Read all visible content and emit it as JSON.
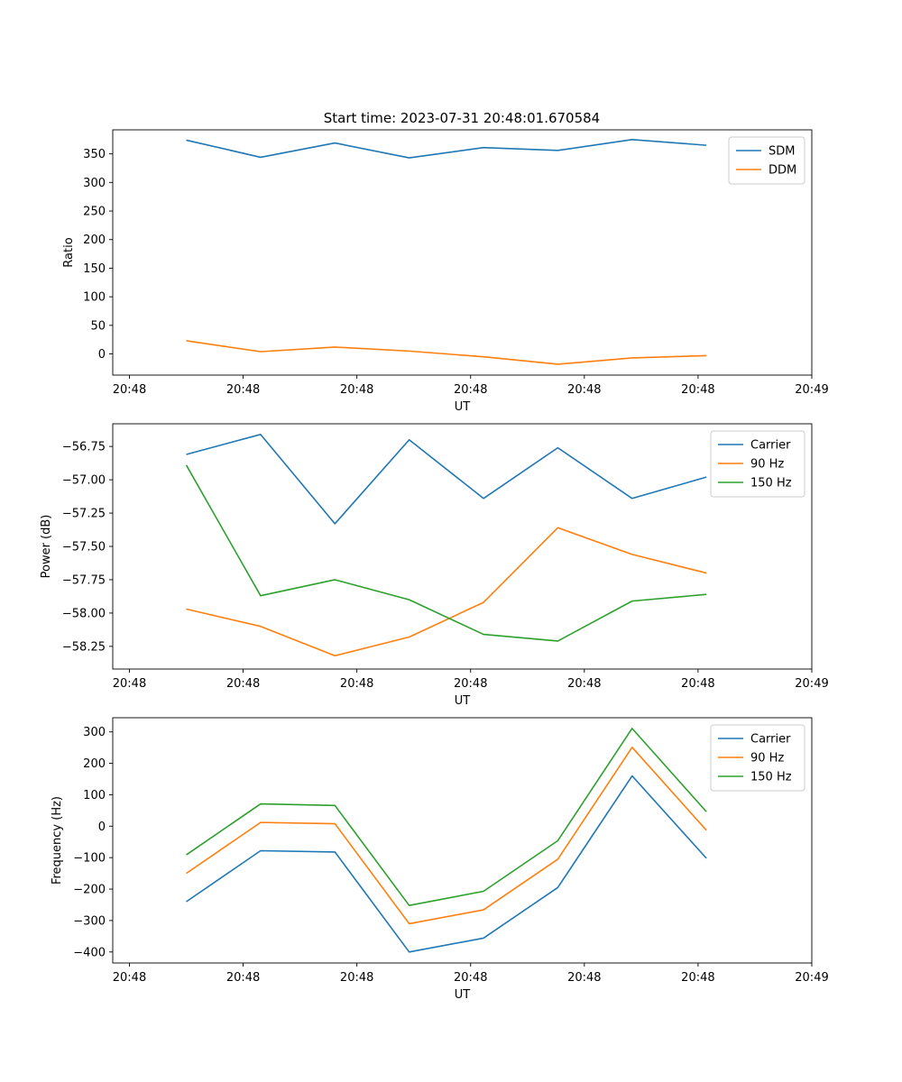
{
  "figure": {
    "title": "Start time: 2023-07-31 20:48:01.670584"
  },
  "chart_data": [
    {
      "type": "line",
      "title": "Start time: 2023-07-31 20:48:01.670584",
      "xlabel": "UT",
      "ylabel": "Ratio",
      "xlim": [
        -0.22,
        9.0
      ],
      "ylim": [
        -37,
        392
      ],
      "xticks": [
        0,
        1.5,
        3,
        4.5,
        6,
        7.5,
        9
      ],
      "xticklabels": [
        "20:48",
        "20:48",
        "20:48",
        "20:48",
        "20:48",
        "20:48",
        "20:49"
      ],
      "yticks": [
        0,
        50,
        100,
        150,
        200,
        250,
        300,
        350
      ],
      "yticklabels": [
        "0",
        "50",
        "100",
        "150",
        "200",
        "250",
        "300",
        "350"
      ],
      "x": [
        0.75,
        1.73,
        2.71,
        3.69,
        4.67,
        5.65,
        6.63,
        7.61
      ],
      "legend_position": "top-right",
      "series": [
        {
          "name": "SDM",
          "color": "#1f77b4",
          "values": [
            374,
            344,
            369,
            343,
            361,
            356,
            375,
            365
          ]
        },
        {
          "name": "DDM",
          "color": "#ff7f0e",
          "values": [
            23,
            4,
            12,
            5,
            -5,
            -18,
            -7,
            -3
          ]
        }
      ]
    },
    {
      "type": "line",
      "title": "",
      "xlabel": "UT",
      "ylabel": "Power (dB)",
      "xlim": [
        -0.22,
        9.0
      ],
      "ylim": [
        -58.42,
        -56.58
      ],
      "xticks": [
        0,
        1.5,
        3,
        4.5,
        6,
        7.5,
        9
      ],
      "xticklabels": [
        "20:48",
        "20:48",
        "20:48",
        "20:48",
        "20:48",
        "20:48",
        "20:49"
      ],
      "yticks": [
        -56.75,
        -57.0,
        -57.25,
        -57.5,
        -57.75,
        -58.0,
        -58.25
      ],
      "yticklabels": [
        "−56.75",
        "−57.00",
        "−57.25",
        "−57.50",
        "−57.75",
        "−58.00",
        "−58.25"
      ],
      "x": [
        0.75,
        1.73,
        2.71,
        3.69,
        4.67,
        5.65,
        6.63,
        7.61
      ],
      "legend_position": "top-right",
      "series": [
        {
          "name": "Carrier",
          "color": "#1f77b4",
          "values": [
            -56.81,
            -56.66,
            -57.33,
            -56.7,
            -57.14,
            -56.76,
            -57.14,
            -56.98
          ]
        },
        {
          "name": "90 Hz",
          "color": "#ff7f0e",
          "values": [
            -57.97,
            -58.1,
            -58.32,
            -58.18,
            -57.92,
            -57.36,
            -57.56,
            -57.7
          ]
        },
        {
          "name": "150 Hz",
          "color": "#2ca02c",
          "values": [
            -56.89,
            -57.87,
            -57.75,
            -57.9,
            -58.16,
            -58.21,
            -57.91,
            -57.86
          ]
        }
      ]
    },
    {
      "type": "line",
      "title": "",
      "xlabel": "UT",
      "ylabel": "Frequency (Hz)",
      "xlim": [
        -0.22,
        9.0
      ],
      "ylim": [
        -435,
        345
      ],
      "xticks": [
        0,
        1.5,
        3,
        4.5,
        6,
        7.5,
        9
      ],
      "xticklabels": [
        "20:48",
        "20:48",
        "20:48",
        "20:48",
        "20:48",
        "20:48",
        "20:49"
      ],
      "yticks": [
        300,
        200,
        100,
        0,
        -100,
        -200,
        -300,
        -400
      ],
      "yticklabels": [
        "300",
        "200",
        "100",
        "0",
        "−100",
        "−200",
        "−300",
        "−400"
      ],
      "x": [
        0.75,
        1.73,
        2.71,
        3.69,
        4.67,
        5.65,
        6.63,
        7.61
      ],
      "legend_position": "top-right",
      "series": [
        {
          "name": "Carrier",
          "color": "#1f77b4",
          "values": [
            -240,
            -78,
            -82,
            -400,
            -356,
            -195,
            160,
            -102
          ]
        },
        {
          "name": "90 Hz",
          "color": "#ff7f0e",
          "values": [
            -150,
            12,
            8,
            -310,
            -266,
            -105,
            251,
            -13
          ]
        },
        {
          "name": "150 Hz",
          "color": "#2ca02c",
          "values": [
            -91,
            71,
            66,
            -252,
            -207,
            -46,
            311,
            46
          ]
        }
      ]
    }
  ]
}
